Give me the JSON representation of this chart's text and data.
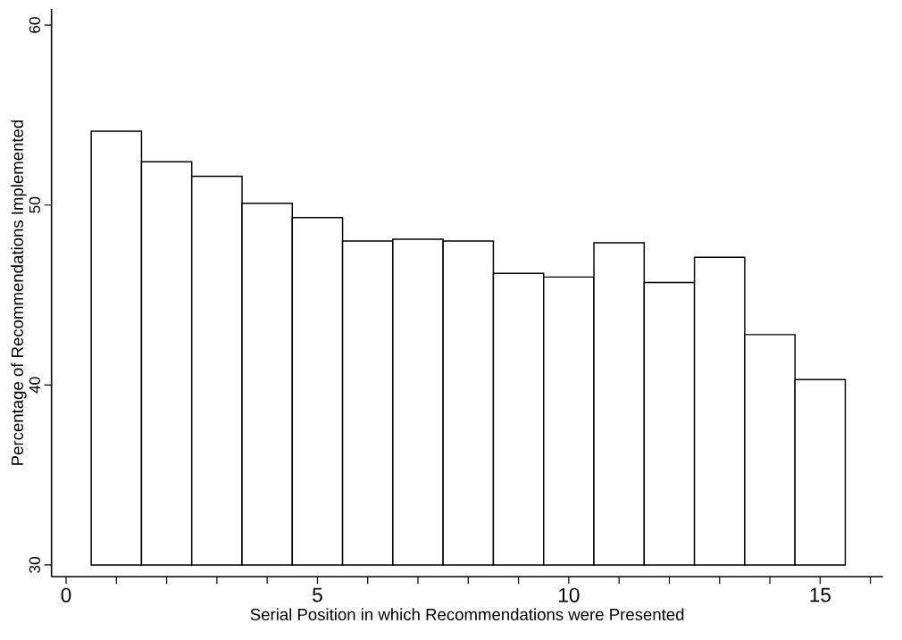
{
  "chart_data": {
    "type": "bar",
    "xlabel": "Serial Position in which Recommendations were Presented",
    "ylabel": "Percentage of Recommendations Implemented",
    "x": [
      1,
      2,
      3,
      4,
      5,
      6,
      7,
      8,
      9,
      10,
      11,
      12,
      13,
      14,
      15
    ],
    "base": [
      30,
      30,
      30,
      30,
      30,
      30,
      30,
      30,
      30,
      30,
      30,
      30,
      30,
      30,
      30
    ],
    "values": [
      24.1,
      22.4,
      21.6,
      20.1,
      19.3,
      18.0,
      18.1,
      18.0,
      16.2,
      16.0,
      17.9,
      15.7,
      17.1,
      12.8,
      10.3
    ],
    "color": "#ffffff",
    "xlim": [
      -0.29,
      16.25
    ],
    "ylim": [
      29.35,
      60.9
    ],
    "xticks": [
      0,
      {
        "value": 1,
        "label": null
      },
      {
        "value": 2,
        "label": null
      },
      {
        "value": 3,
        "label": null
      },
      {
        "value": 4,
        "label": null
      },
      5,
      {
        "value": 6,
        "label": null
      },
      {
        "value": 7,
        "label": null
      },
      {
        "value": 8,
        "label": null
      },
      {
        "value": 9,
        "label": null
      },
      10,
      {
        "value": 11,
        "label": null
      },
      {
        "value": 12,
        "label": null
      },
      {
        "value": 13,
        "label": null
      },
      {
        "value": 14,
        "label": null
      },
      15,
      {
        "value": 16,
        "label": null
      }
    ],
    "yticks": [
      30,
      40,
      50,
      60
    ]
  }
}
